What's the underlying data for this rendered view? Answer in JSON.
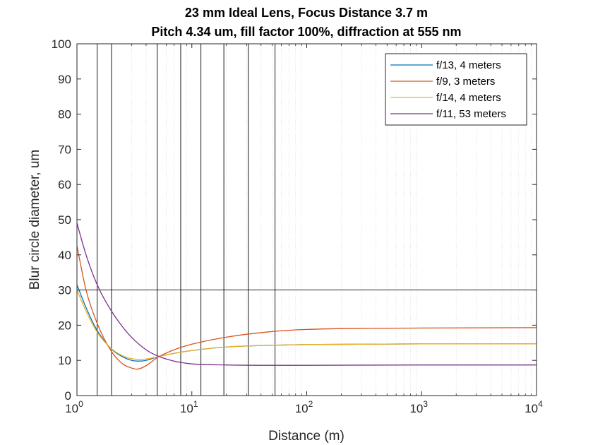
{
  "chart_data": {
    "type": "line",
    "title_line1": "23 mm Ideal Lens, Focus Distance 3.7 m",
    "title_line2": "Pitch 4.34 um, fill factor 100%, diffraction at 555 nm",
    "xlabel": "Distance (m)",
    "ylabel": "Blur circle diameter, um",
    "x_scale": "log",
    "xlim": [
      1,
      10000
    ],
    "ylim": [
      0,
      100
    ],
    "x_ticks": [
      {
        "base": "10",
        "exp": "0"
      },
      {
        "base": "10",
        "exp": "1"
      },
      {
        "base": "10",
        "exp": "2"
      },
      {
        "base": "10",
        "exp": "3"
      },
      {
        "base": "10",
        "exp": "4"
      }
    ],
    "y_ticks": [
      "0",
      "10",
      "20",
      "30",
      "40",
      "50",
      "60",
      "70",
      "80",
      "90",
      "100"
    ],
    "grid": "minor dotted on x axis",
    "reference_vertical_lines": [
      1.5,
      2,
      5,
      8,
      12,
      19,
      31,
      53
    ],
    "reference_horizontal_line": 30,
    "legend_position": "top-right",
    "series": [
      {
        "name": "f/13, 4 meters",
        "color": "#0072BD",
        "x": [
          1,
          1.2,
          1.5,
          2,
          2.5,
          3,
          3.5,
          4,
          5,
          7,
          10,
          20,
          50,
          100,
          1000,
          10000
        ],
        "y": [
          31.5,
          25,
          18.5,
          13.2,
          11,
          10,
          9.8,
          10,
          11,
          12,
          12.8,
          13.8,
          14.3,
          14.5,
          14.7,
          14.7
        ]
      },
      {
        "name": "f/9, 3 meters",
        "color": "#D95319",
        "x": [
          1,
          1.2,
          1.5,
          2,
          2.5,
          3,
          3.3,
          4,
          5,
          7,
          10,
          20,
          50,
          100,
          1000,
          10000
        ],
        "y": [
          42.5,
          30,
          20.5,
          12.5,
          9,
          7.8,
          7.5,
          8.5,
          10.8,
          13,
          14.6,
          16.6,
          18.2,
          18.8,
          19.2,
          19.3
        ]
      },
      {
        "name": "f/14, 4 meters",
        "color": "#EDB120",
        "x": [
          1,
          1.2,
          1.5,
          2,
          2.5,
          3,
          3.5,
          4,
          5,
          7,
          10,
          20,
          50,
          100,
          1000,
          10000
        ],
        "y": [
          30,
          24,
          18,
          13.3,
          11.3,
          10.5,
          10.3,
          10.4,
          11,
          12,
          12.8,
          13.8,
          14.3,
          14.5,
          14.7,
          14.7
        ]
      },
      {
        "name": "f/11, 53 meters",
        "color": "#7E2F8E",
        "x": [
          1,
          1.2,
          1.5,
          2,
          2.5,
          3,
          4,
          5,
          7,
          10,
          20,
          50,
          100,
          1000,
          10000
        ],
        "y": [
          49,
          40,
          31.5,
          24,
          19.5,
          16.5,
          13,
          11.3,
          9.8,
          9,
          8.7,
          8.6,
          8.6,
          8.7,
          8.7
        ]
      }
    ]
  }
}
